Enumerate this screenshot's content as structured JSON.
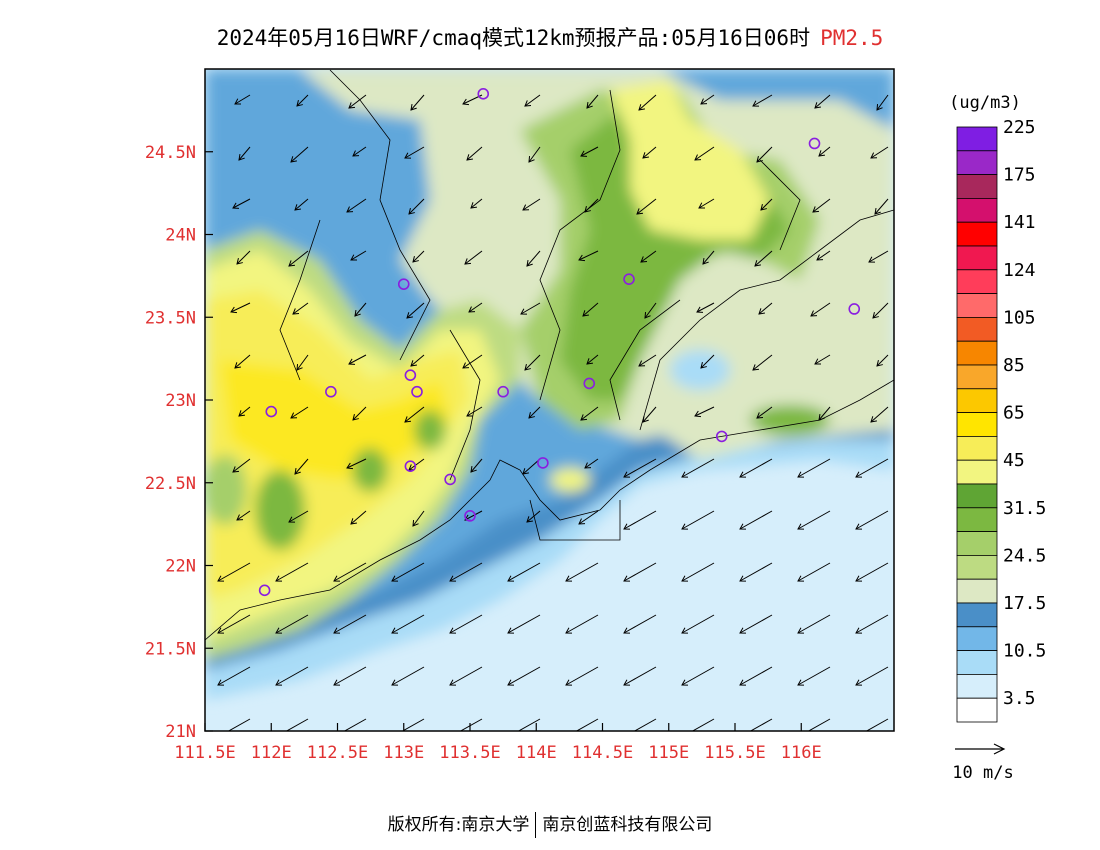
{
  "title": {
    "text": "2024年05月16日WRF/cmaq模式12km预报产品:05月16日06时",
    "variable": "PM2.5"
  },
  "colors": {
    "axis_label": "#e03030"
  },
  "map": {
    "lon_range": [
      111.5,
      116.7
    ],
    "lat_range": [
      21.0,
      25.0
    ],
    "lon_ticks": [
      {
        "value": 111.5,
        "label": "111.5E"
      },
      {
        "value": 112.0,
        "label": "112E"
      },
      {
        "value": 112.5,
        "label": "112.5E"
      },
      {
        "value": 113.0,
        "label": "113E"
      },
      {
        "value": 113.5,
        "label": "113.5E"
      },
      {
        "value": 114.0,
        "label": "114E"
      },
      {
        "value": 114.5,
        "label": "114.5E"
      },
      {
        "value": 115.0,
        "label": "115E"
      },
      {
        "value": 115.5,
        "label": "115.5E"
      },
      {
        "value": 116.0,
        "label": "116E"
      }
    ],
    "lat_ticks": [
      {
        "value": 21.0,
        "label": "21N"
      },
      {
        "value": 21.5,
        "label": "21.5N"
      },
      {
        "value": 22.0,
        "label": "22N"
      },
      {
        "value": 22.5,
        "label": "22.5N"
      },
      {
        "value": 23.0,
        "label": "23N"
      },
      {
        "value": 23.5,
        "label": "23.5N"
      },
      {
        "value": 24.0,
        "label": "24N"
      },
      {
        "value": 24.5,
        "label": "24.5N"
      }
    ],
    "stations": [
      [
        113.6,
        24.85
      ],
      [
        116.1,
        24.55
      ],
      [
        113.0,
        23.7
      ],
      [
        114.7,
        23.73
      ],
      [
        116.4,
        23.55
      ],
      [
        112.0,
        22.93
      ],
      [
        112.45,
        23.05
      ],
      [
        113.05,
        23.15
      ],
      [
        113.1,
        23.05
      ],
      [
        113.75,
        23.05
      ],
      [
        114.4,
        23.1
      ],
      [
        115.4,
        22.78
      ],
      [
        113.05,
        22.6
      ],
      [
        113.35,
        22.52
      ],
      [
        114.05,
        22.62
      ],
      [
        113.5,
        22.3
      ],
      [
        111.95,
        21.85
      ]
    ]
  },
  "colorbar": {
    "unit": "(ug/m3)",
    "colors": [
      "#ffffff",
      "#d6eefb",
      "#a9dcf7",
      "#72b7e8",
      "#4a8fc8",
      "#dde8c4",
      "#bddb82",
      "#a5cf6a",
      "#7cb841",
      "#5fa534",
      "#f2f580",
      "#f7ed58",
      "#ffe500",
      "#fcc800",
      "#f9a72a",
      "#f78600",
      "#f25b24",
      "#ff6a6a",
      "#ff3d5a",
      "#f01850",
      "#ff0000",
      "#d4106d",
      "#a8285c",
      "#9a28c8",
      "#7f1ee3"
    ],
    "labels": [
      "3.5",
      "10.5",
      "17.5",
      "24.5",
      "31.5",
      "45",
      "65",
      "85",
      "105",
      "124",
      "141",
      "175",
      "225"
    ]
  },
  "wind": {
    "legend_label": "10 m/s"
  },
  "footer": {
    "left": "版权所有:南京大学",
    "right": "南京创蓝科技有限公司"
  }
}
